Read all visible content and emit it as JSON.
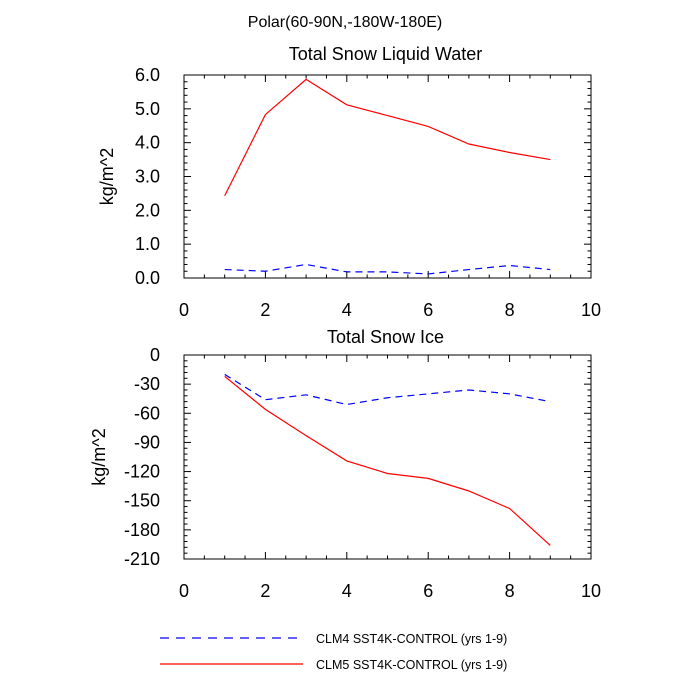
{
  "figure_title": "Polar(60-90N,-180W-180E)",
  "legend": [
    {
      "label": "CLM4 SST4K-CONTROL (yrs 1-9)",
      "color": "#0000ff",
      "style": "dashed"
    },
    {
      "label": "CLM5 SST4K-CONTROL (yrs 1-9)",
      "color": "#ff0000",
      "style": "solid"
    }
  ],
  "chart_data": [
    {
      "type": "line",
      "title": "Total Snow Liquid Water",
      "xlabel": "",
      "ylabel": "kg/m^2",
      "xlim": [
        0,
        10
      ],
      "ylim": [
        0,
        6
      ],
      "xticks": [
        0,
        2,
        4,
        6,
        8,
        10
      ],
      "xtick_labels": [
        "0",
        "2",
        "4",
        "6",
        "8",
        "10"
      ],
      "yticks": [
        0,
        1,
        2,
        3,
        4,
        5,
        6
      ],
      "ytick_labels": [
        "0.0",
        "1.0",
        "2.0",
        "3.0",
        "4.0",
        "5.0",
        "6.0"
      ],
      "x": [
        1,
        2,
        3,
        4,
        5,
        6,
        7,
        8,
        9
      ],
      "series": [
        {
          "name": "CLM4 SST4K-CONTROL (yrs 1-9)",
          "color": "#0000ff",
          "style": "dashed",
          "values": [
            0.25,
            0.2,
            0.4,
            0.18,
            0.18,
            0.12,
            0.25,
            0.37,
            0.25
          ]
        },
        {
          "name": "CLM5 SST4K-CONTROL (yrs 1-9)",
          "color": "#ff0000",
          "style": "solid",
          "values": [
            2.43,
            4.83,
            5.87,
            5.12,
            4.8,
            4.48,
            3.96,
            3.71,
            3.5
          ]
        }
      ]
    },
    {
      "type": "line",
      "title": "Total Snow Ice",
      "xlabel": "",
      "ylabel": "kg/m^2",
      "xlim": [
        0,
        10
      ],
      "ylim": [
        -210,
        0
      ],
      "xticks": [
        0,
        2,
        4,
        6,
        8,
        10
      ],
      "xtick_labels": [
        "0",
        "2",
        "4",
        "6",
        "8",
        "10"
      ],
      "yticks": [
        0,
        -30,
        -60,
        -90,
        -120,
        -150,
        -180,
        -210
      ],
      "ytick_labels": [
        "0",
        "-30",
        "-60",
        "-90",
        "-120",
        "-150",
        "-180",
        "-210"
      ],
      "x": [
        1,
        2,
        3,
        4,
        5,
        6,
        7,
        8,
        9
      ],
      "series": [
        {
          "name": "CLM4 SST4K-CONTROL (yrs 1-9)",
          "color": "#0000ff",
          "style": "dashed",
          "values": [
            -20,
            -46,
            -41,
            -51,
            -44,
            -40,
            -36,
            -40,
            -48
          ]
        },
        {
          "name": "CLM5 SST4K-CONTROL (yrs 1-9)",
          "color": "#ff0000",
          "style": "solid",
          "values": [
            -22,
            -56,
            -83,
            -109,
            -122,
            -127,
            -140,
            -158,
            -196
          ]
        }
      ]
    }
  ]
}
